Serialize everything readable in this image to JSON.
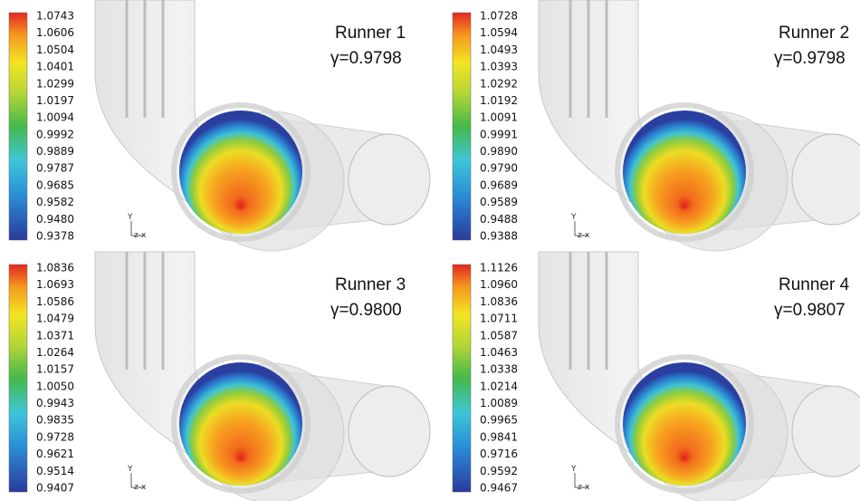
{
  "panels": [
    {
      "title": "Runner 1",
      "gamma": "γ=0.9798",
      "axis_y": "Y",
      "axis_zx": "z-x",
      "colorbar": [
        "1.0743",
        "1.0606",
        "1.0504",
        "1.0401",
        "1.0299",
        "1.0197",
        "1.0094",
        "0.9992",
        "0.9889",
        "0.9787",
        "0.9685",
        "0.9582",
        "0.9480",
        "0.9378"
      ]
    },
    {
      "title": "Runner 2",
      "gamma": "γ=0.9798",
      "axis_y": "Y",
      "axis_zx": "z-x",
      "colorbar": [
        "1.0728",
        "1.0594",
        "1.0493",
        "1.0393",
        "1.0292",
        "1.0192",
        "1.0091",
        "0.9991",
        "0.9890",
        "0.9790",
        "0.9689",
        "0.9589",
        "0.9488",
        "0.9388"
      ]
    },
    {
      "title": "Runner 3",
      "gamma": "γ=0.9800",
      "axis_y": "Y",
      "axis_zx": "z-x",
      "colorbar": [
        "1.0836",
        "1.0693",
        "1.0586",
        "1.0479",
        "1.0371",
        "1.0264",
        "1.0157",
        "1.0050",
        "0.9943",
        "0.9835",
        "0.9728",
        "0.9621",
        "0.9514",
        "0.9407"
      ]
    },
    {
      "title": "Runner 4",
      "gamma": "γ=0.9807",
      "axis_y": "Y",
      "axis_zx": "z-x",
      "colorbar": [
        "1.1126",
        "1.0960",
        "1.0836",
        "1.0711",
        "1.0587",
        "1.0463",
        "1.0338",
        "1.0214",
        "1.0089",
        "0.9965",
        "0.9841",
        "0.9716",
        "0.9592",
        "0.9467"
      ]
    }
  ]
}
